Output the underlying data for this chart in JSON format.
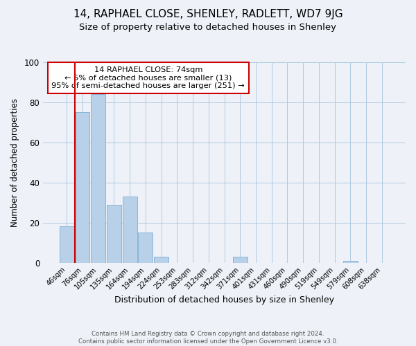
{
  "title": "14, RAPHAEL CLOSE, SHENLEY, RADLETT, WD7 9JG",
  "subtitle": "Size of property relative to detached houses in Shenley",
  "xlabel": "Distribution of detached houses by size in Shenley",
  "ylabel": "Number of detached properties",
  "bar_labels": [
    "46sqm",
    "76sqm",
    "105sqm",
    "135sqm",
    "164sqm",
    "194sqm",
    "224sqm",
    "253sqm",
    "283sqm",
    "312sqm",
    "342sqm",
    "371sqm",
    "401sqm",
    "431sqm",
    "460sqm",
    "490sqm",
    "519sqm",
    "549sqm",
    "579sqm",
    "608sqm",
    "638sqm"
  ],
  "bar_values": [
    18,
    75,
    84,
    29,
    33,
    15,
    3,
    0,
    0,
    0,
    0,
    3,
    0,
    0,
    0,
    0,
    0,
    0,
    1,
    0,
    0
  ],
  "bar_color": "#b8d0e8",
  "bar_edge_color": "#7bafd4",
  "vline_x": 0.5,
  "vline_color": "#cc0000",
  "annotation_text_line1": "14 RAPHAEL CLOSE: 74sqm",
  "annotation_text_line2": "← 5% of detached houses are smaller (13)",
  "annotation_text_line3": "95% of semi-detached houses are larger (251) →",
  "annotation_box_color": "#cc0000",
  "ylim": [
    0,
    100
  ],
  "yticks": [
    0,
    20,
    40,
    60,
    80,
    100
  ],
  "footer_line1": "Contains HM Land Registry data © Crown copyright and database right 2024.",
  "footer_line2": "Contains public sector information licensed under the Open Government Licence v3.0.",
  "background_color": "#eef2f8",
  "title_fontsize": 11,
  "subtitle_fontsize": 9.5,
  "ylabel_fontsize": 8.5,
  "xlabel_fontsize": 9
}
